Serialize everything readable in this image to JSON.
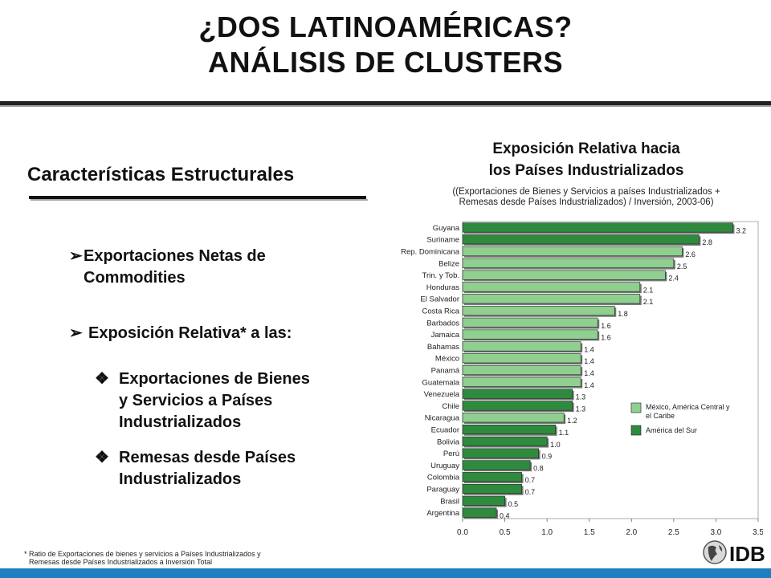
{
  "slide": {
    "title_line1": "¿DOS LATINOAMÉRICAS?",
    "title_line2": "ANÁLISIS DE CLUSTERS"
  },
  "left": {
    "heading": "Características Estructurales",
    "bullet1_line1": "Exportaciones Netas de",
    "bullet1_line2": "Commodities",
    "bullet2": "Exposición Relativa* a las:",
    "sub1_line1": "Exportaciones de Bienes",
    "sub1_line2": "y Servicios a Países",
    "sub1_line3": "Industrializados",
    "sub2_line1": "Remesas desde Países",
    "sub2_line2": "Industrializados",
    "arrow_icon": "arrow-bullet-icon",
    "diamond_icon": "diamond-bullet-icon"
  },
  "footnote": {
    "line1": "* Ratio de Exportaciones de bienes y servicios a Países Industrializados y",
    "line2": "Remesas desde Países Industrializados a Inversión Total"
  },
  "logo": {
    "text": "IDB"
  },
  "colors": {
    "central": "#8fcf8f",
    "south": "#2e8b3e",
    "accent_bar": "#1d7fc1"
  },
  "chart_data": {
    "type": "bar",
    "orientation": "horizontal",
    "title_line1": "Exposición Relativa hacia",
    "title_line2": "los Países Industrializados",
    "subtitle_line1": "((Exportaciones de Bienes y Servicios a países Industrializados +",
    "subtitle_line2": "Remesas desde Países Industrializados) / Inversión, 2003-06)",
    "xlim": [
      0,
      3.5
    ],
    "xticks": [
      "0.0",
      "0.5",
      "1.0",
      "1.5",
      "2.0",
      "2.5",
      "3.0",
      "3.5"
    ],
    "legend_position": "right",
    "series": [
      {
        "name": "México, América Central y el Caribe",
        "name_line1": "México, América Central y",
        "name_line2": "el Caribe",
        "key": "central"
      },
      {
        "name": "América del Sur",
        "key": "south"
      }
    ],
    "bars": [
      {
        "label": "Guyana",
        "value": 3.2,
        "group": "south"
      },
      {
        "label": "Suriname",
        "value": 2.8,
        "group": "south"
      },
      {
        "label": "Rep. Dominicana",
        "value": 2.6,
        "group": "central"
      },
      {
        "label": "Belize",
        "value": 2.5,
        "group": "central"
      },
      {
        "label": "Trin. y Tob.",
        "value": 2.4,
        "group": "central"
      },
      {
        "label": "Honduras",
        "value": 2.1,
        "group": "central"
      },
      {
        "label": "El Salvador",
        "value": 2.1,
        "group": "central"
      },
      {
        "label": "Costa Rica",
        "value": 1.8,
        "group": "central"
      },
      {
        "label": "Barbados",
        "value": 1.6,
        "group": "central"
      },
      {
        "label": "Jamaica",
        "value": 1.6,
        "group": "central"
      },
      {
        "label": "Bahamas",
        "value": 1.4,
        "group": "central"
      },
      {
        "label": "México",
        "value": 1.4,
        "group": "central"
      },
      {
        "label": "Panamá",
        "value": 1.4,
        "group": "central"
      },
      {
        "label": "Guatemala",
        "value": 1.4,
        "group": "central"
      },
      {
        "label": "Venezuela",
        "value": 1.3,
        "group": "south"
      },
      {
        "label": "Chile",
        "value": 1.3,
        "group": "south"
      },
      {
        "label": "Nicaragua",
        "value": 1.2,
        "group": "central"
      },
      {
        "label": "Ecuador",
        "value": 1.1,
        "group": "south"
      },
      {
        "label": "Bolivia",
        "value": 1.0,
        "group": "south"
      },
      {
        "label": "Perú",
        "value": 0.9,
        "group": "south"
      },
      {
        "label": "Uruguay",
        "value": 0.8,
        "group": "south"
      },
      {
        "label": "Colombia",
        "value": 0.7,
        "group": "south"
      },
      {
        "label": "Paraguay",
        "value": 0.7,
        "group": "south"
      },
      {
        "label": "Brasil",
        "value": 0.5,
        "group": "south"
      },
      {
        "label": "Argentina",
        "value": 0.4,
        "group": "south"
      }
    ]
  }
}
